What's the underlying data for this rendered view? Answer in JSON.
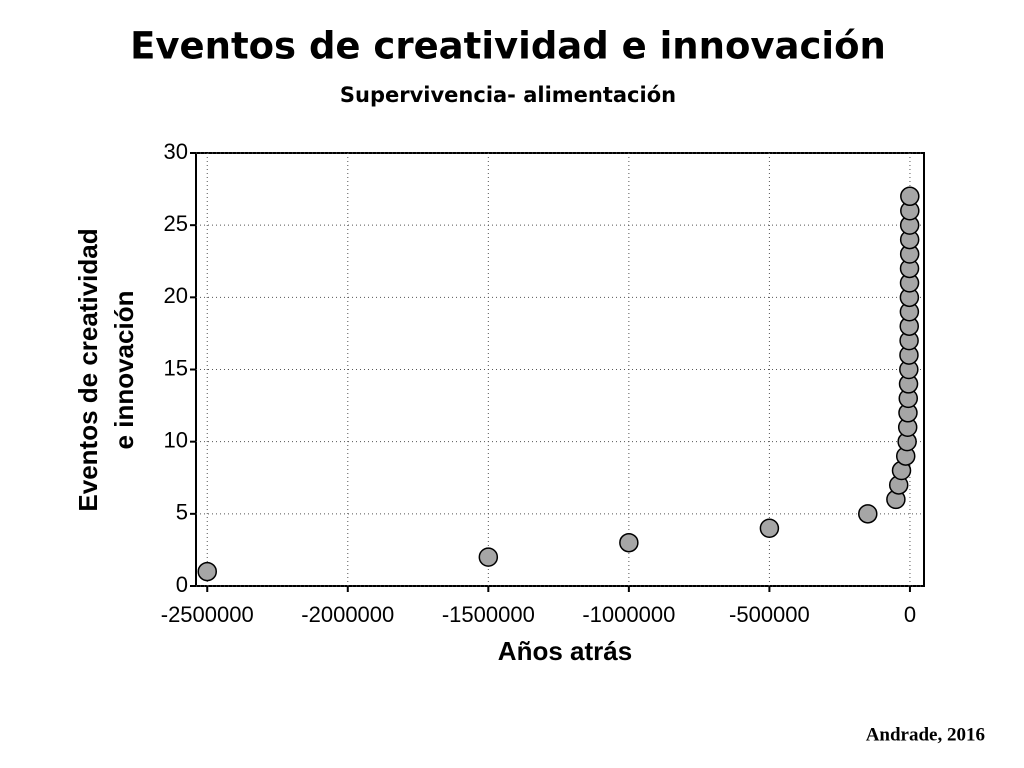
{
  "chart_data": {
    "type": "scatter",
    "title": "Eventos de creatividad e innovación",
    "subtitle": "Supervivencia- alimentación",
    "xlabel": "Años atrás",
    "ylabel": [
      "Eventos de creatividad",
      "e innovación"
    ],
    "note": "Andrade,  2016",
    "x": [
      -2500000,
      -1500000,
      -1000000,
      -500000,
      -150000,
      -50000,
      -40000,
      -30000,
      -15000,
      -10000,
      -8000,
      -7000,
      -6000,
      -5000,
      -4000,
      -3500,
      -3000,
      -2500,
      -2000,
      -2000,
      -1500,
      -1500,
      -1000,
      -1000,
      -1000,
      -500,
      -500
    ],
    "values": [
      1,
      2,
      3,
      4,
      5,
      6,
      7,
      8,
      9,
      10,
      11,
      12,
      13,
      14,
      15,
      16,
      17,
      18,
      19,
      20,
      21,
      22,
      23,
      24,
      25,
      26,
      27
    ],
    "color": "#a6a6a6",
    "xlim": [
      -2540000,
      50000
    ],
    "xticks": [
      -2500000,
      -2000000,
      -1500000,
      -1000000,
      -500000,
      0
    ],
    "ylim": [
      0,
      30
    ],
    "yticks": [
      0,
      5,
      10,
      15,
      20,
      25,
      30
    ],
    "grid": true
  }
}
